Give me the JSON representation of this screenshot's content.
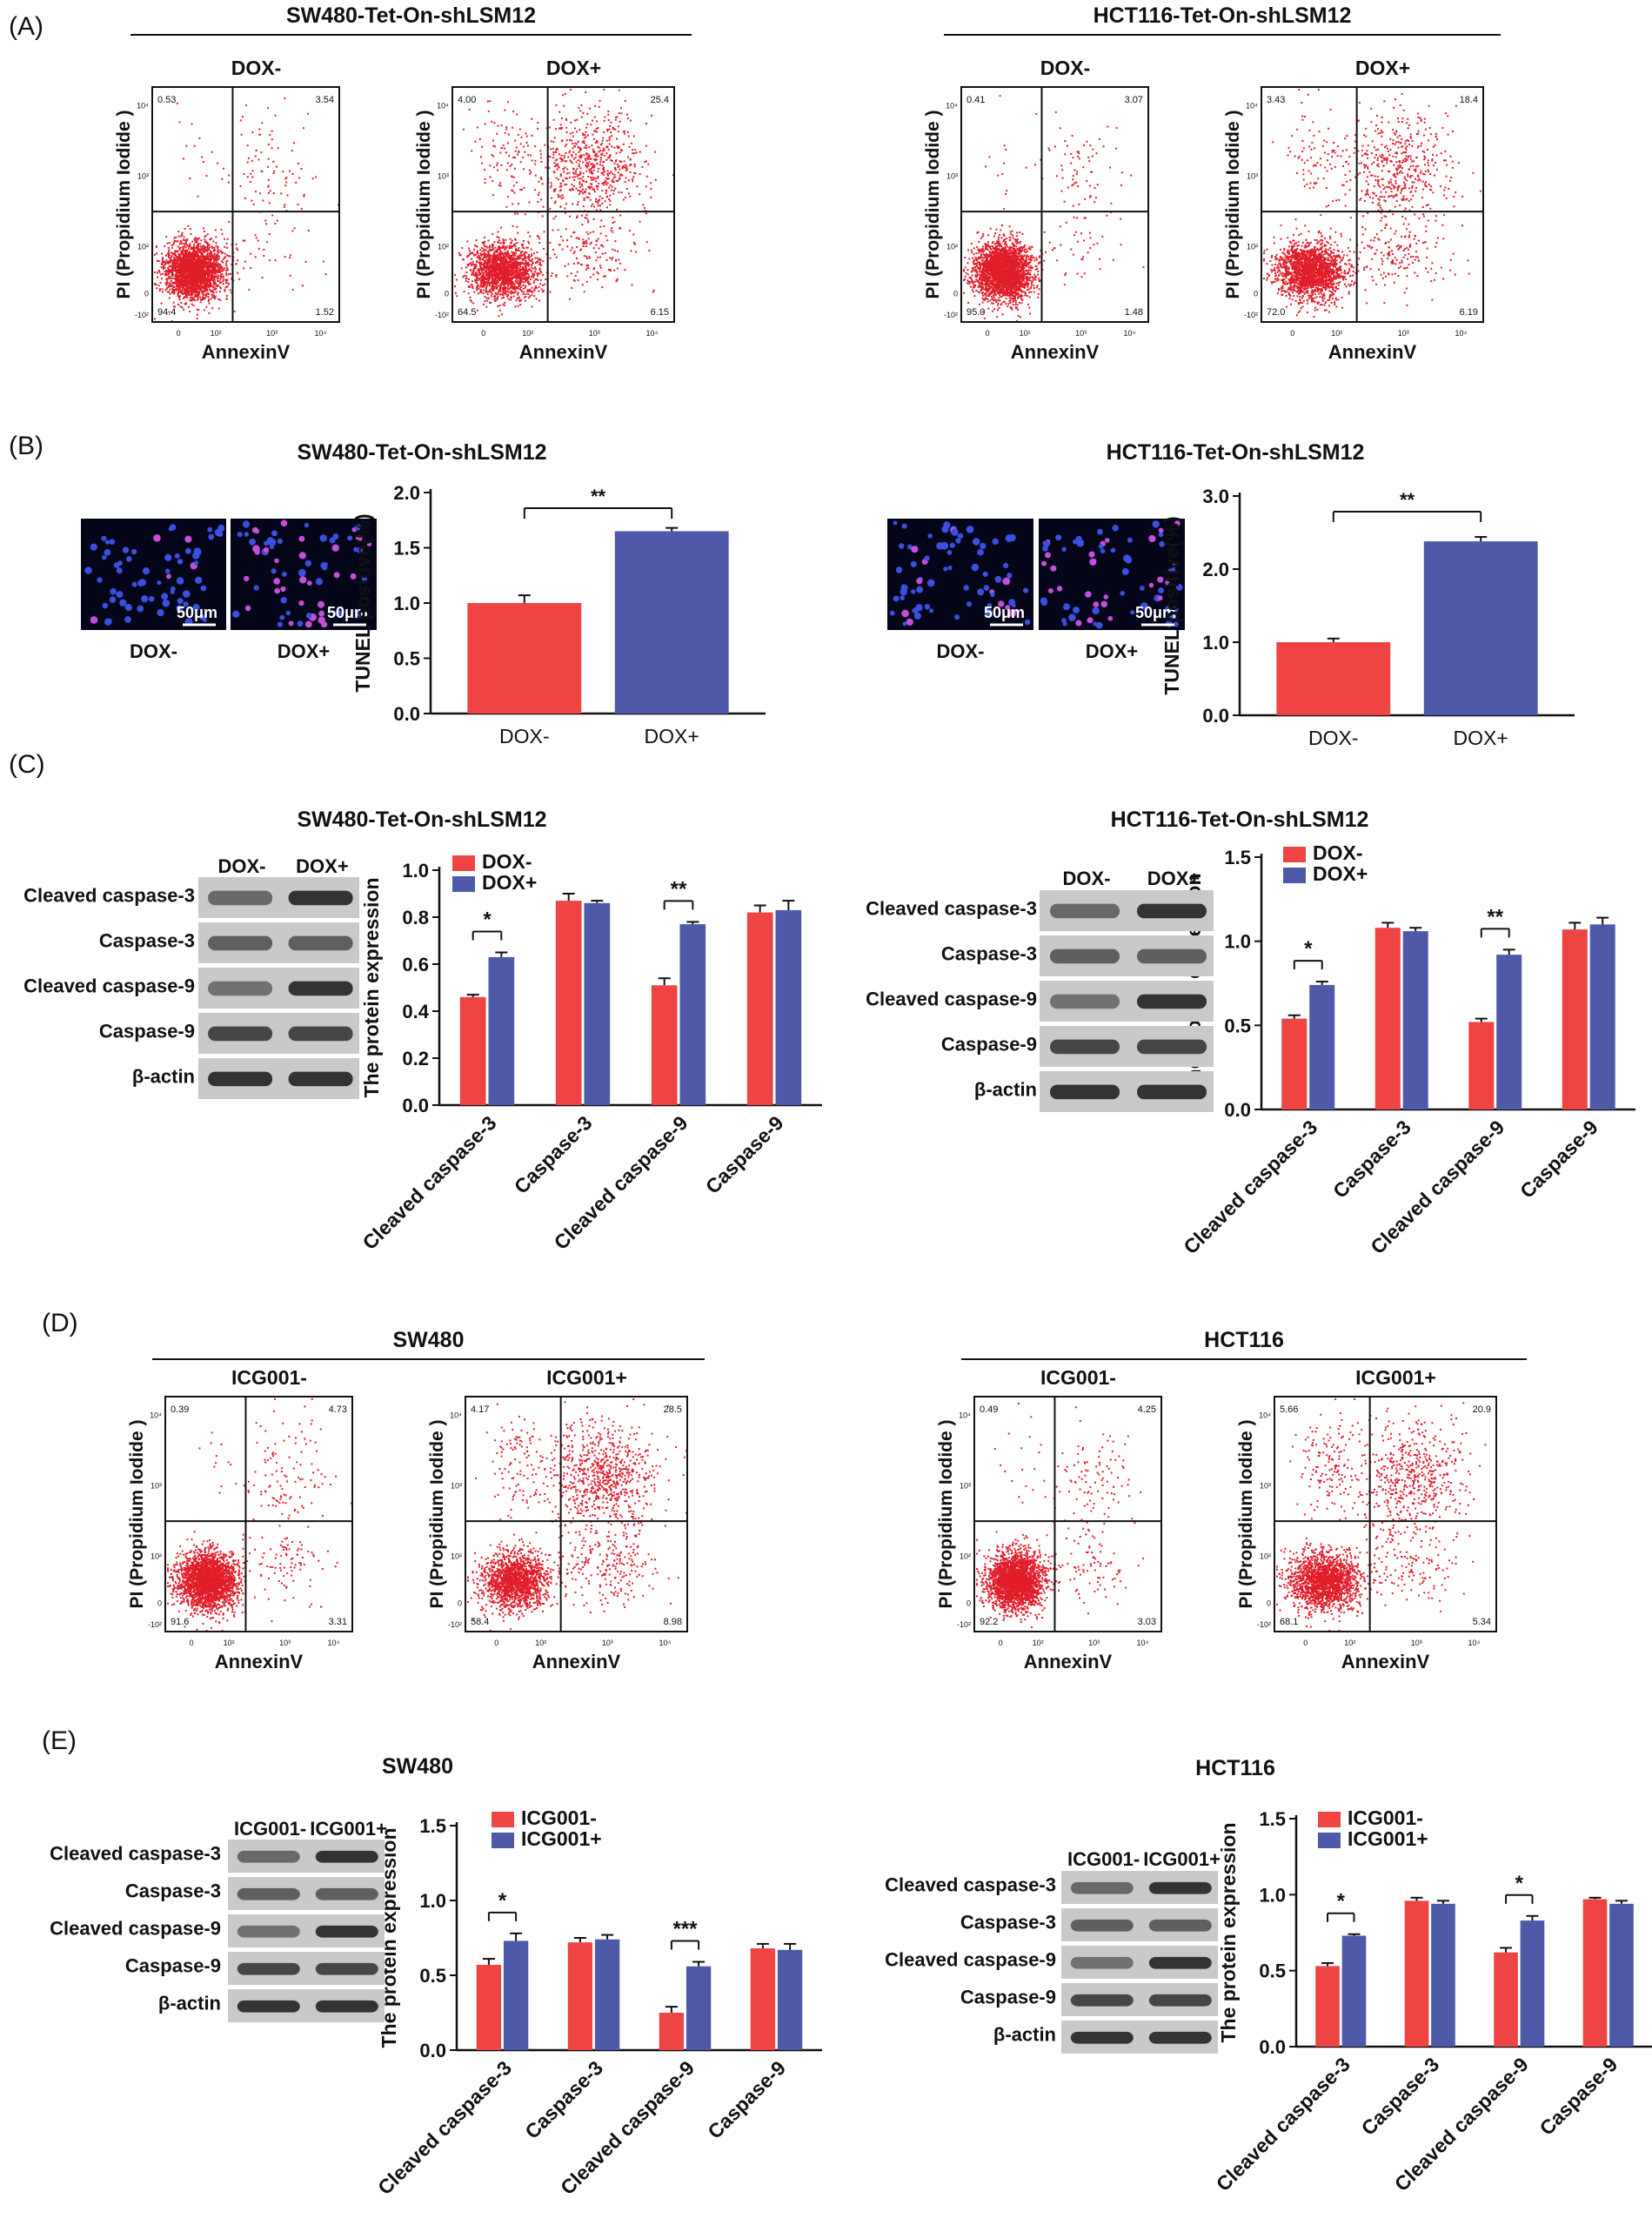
{
  "colors": {
    "red": "#ef4444",
    "blue": "#4e5aa8",
    "dot": "#e11d2a",
    "black": "#111111"
  },
  "panel_labels": [
    "(A)",
    "(B)",
    "(C)",
    "(D)",
    "(E)"
  ],
  "chart_data": [
    {
      "type": "scatter",
      "title": "SW480-Tet-On-shLSM12",
      "xlabel": "AnnexinV",
      "ylabel": "PI (Propidium Iodide )",
      "xtick_labels": [
        "0",
        "10²",
        "10³",
        "10⁴"
      ],
      "ytick_labels": [
        "-10²",
        "0",
        "10²",
        "10³",
        "10⁴"
      ],
      "plots": [
        {
          "label": "DOX-",
          "quadrants": {
            "upper_left": "0.53",
            "upper_right": "3.54",
            "lower_left": "94.4",
            "lower_right": "1.52"
          }
        },
        {
          "label": "DOX+",
          "quadrants": {
            "upper_left": "4.00",
            "upper_right": "25.4",
            "lower_left": "64.5",
            "lower_right": "6.15"
          }
        }
      ]
    },
    {
      "type": "scatter",
      "title": "HCT116-Tet-On-shLSM12",
      "xlabel": "AnnexinV",
      "ylabel": "PI (Propidium Iodide )",
      "xtick_labels": [
        "0",
        "10²",
        "10³",
        "10⁴"
      ],
      "ytick_labels": [
        "-10²",
        "0",
        "10²",
        "10³",
        "10⁴"
      ],
      "plots": [
        {
          "label": "DOX-",
          "quadrants": {
            "upper_left": "0.41",
            "upper_right": "3.07",
            "lower_left": "95.0",
            "lower_right": "1.48"
          }
        },
        {
          "label": "DOX+",
          "quadrants": {
            "upper_left": "3.43",
            "upper_right": "18.4",
            "lower_left": "72.0",
            "lower_right": "6.19"
          }
        }
      ]
    },
    {
      "type": "bar",
      "title": "SW480-Tet-On-shLSM12",
      "image_labels": [
        "DOX-",
        "DOX+"
      ],
      "scale_bar": "50μm",
      "categories": [
        "DOX-",
        "DOX+"
      ],
      "values": [
        1.0,
        1.65
      ],
      "errors": [
        0.07,
        0.03
      ],
      "ylabel": "TUNEL positive(%)",
      "ylim": [
        0,
        2.0
      ],
      "yticks": [
        "0.0",
        "0.5",
        "1.0",
        "1.5",
        "2.0"
      ],
      "significance": "**"
    },
    {
      "type": "bar",
      "title": "HCT116-Tet-On-shLSM12",
      "image_labels": [
        "DOX-",
        "DOX+"
      ],
      "scale_bar": "50μm",
      "categories": [
        "DOX-",
        "DOX+"
      ],
      "values": [
        1.0,
        2.38
      ],
      "errors": [
        0.05,
        0.06
      ],
      "ylabel": "TUNEL positive(%)",
      "ylim": [
        0,
        3.0
      ],
      "yticks": [
        "0.0",
        "1.0",
        "2.0",
        "3.0"
      ],
      "significance": "**"
    },
    {
      "type": "bar",
      "title": "SW480-Tet-On-shLSM12",
      "blot_columns": [
        "DOX-",
        "DOX+"
      ],
      "blot_rows": [
        "Cleaved caspase-3",
        "Caspase-3",
        "Cleaved caspase-9",
        "Caspase-9",
        "β-actin"
      ],
      "categories": [
        "Cleaved caspase-3",
        "Caspase-3",
        "Cleaved caspase-9",
        "Caspase-9"
      ],
      "series": [
        {
          "name": "DOX-",
          "values": [
            0.46,
            0.87,
            0.51,
            0.82
          ],
          "errors": [
            0.01,
            0.03,
            0.03,
            0.03
          ]
        },
        {
          "name": "DOX+",
          "values": [
            0.63,
            0.86,
            0.77,
            0.83
          ],
          "errors": [
            0.02,
            0.01,
            0.01,
            0.04
          ]
        }
      ],
      "ylabel": "The protein expression",
      "ylim": [
        0,
        1.0
      ],
      "yticks": [
        "0.0",
        "0.2",
        "0.4",
        "0.6",
        "0.8",
        "1.0"
      ],
      "significance": [
        {
          "category": 0,
          "mark": "*"
        },
        {
          "category": 2,
          "mark": "**"
        }
      ]
    },
    {
      "type": "bar",
      "title": "HCT116-Tet-On-shLSM12",
      "blot_columns": [
        "DOX-",
        "DOX+"
      ],
      "blot_rows": [
        "Cleaved caspase-3",
        "Caspase-3",
        "Cleaved caspase-9",
        "Caspase-9",
        "β-actin"
      ],
      "categories": [
        "Cleaved caspase-3",
        "Caspase-3",
        "Cleaved caspase-9",
        "Caspase-9"
      ],
      "series": [
        {
          "name": "DOX-",
          "values": [
            0.54,
            1.08,
            0.52,
            1.07
          ],
          "errors": [
            0.02,
            0.03,
            0.02,
            0.04
          ]
        },
        {
          "name": "DOX+",
          "values": [
            0.74,
            1.06,
            0.92,
            1.1
          ],
          "errors": [
            0.02,
            0.02,
            0.03,
            0.04
          ]
        }
      ],
      "ylabel": "The protein expression",
      "ylim": [
        0,
        1.5
      ],
      "yticks": [
        "0.0",
        "0.5",
        "1.0",
        "1.5"
      ],
      "significance": [
        {
          "category": 0,
          "mark": "*"
        },
        {
          "category": 2,
          "mark": "**"
        }
      ]
    },
    {
      "type": "scatter",
      "title": "SW480",
      "xlabel": "AnnexinV",
      "ylabel": "PI (Propidium Iodide )",
      "xtick_labels": [
        "0",
        "10²",
        "10³",
        "10⁴"
      ],
      "ytick_labels": [
        "-10²",
        "0",
        "10²",
        "10³",
        "10⁴"
      ],
      "plots": [
        {
          "label": "ICG001-",
          "quadrants": {
            "upper_left": "0.39",
            "upper_right": "4.73",
            "lower_left": "91.6",
            "lower_right": "3.31"
          }
        },
        {
          "label": "ICG001+",
          "quadrants": {
            "upper_left": "4.17",
            "upper_right": "28.5",
            "lower_left": "58.4",
            "lower_right": "8.98"
          }
        }
      ]
    },
    {
      "type": "scatter",
      "title": "HCT116",
      "xlabel": "AnnexinV",
      "ylabel": "PI (Propidium Iodide )",
      "xtick_labels": [
        "0",
        "10²",
        "10³",
        "10⁴"
      ],
      "ytick_labels": [
        "-10²",
        "0",
        "10²",
        "10³",
        "10⁴"
      ],
      "plots": [
        {
          "label": "ICG001-",
          "quadrants": {
            "upper_left": "0.49",
            "upper_right": "4.25",
            "lower_left": "92.2",
            "lower_right": "3.03"
          }
        },
        {
          "label": "ICG001+",
          "quadrants": {
            "upper_left": "5.66",
            "upper_right": "20.9",
            "lower_left": "68.1",
            "lower_right": "5.34"
          }
        }
      ]
    },
    {
      "type": "bar",
      "title": "SW480",
      "blot_columns": [
        "ICG001-",
        "ICG001+"
      ],
      "blot_rows": [
        "Cleaved caspase-3",
        "Caspase-3",
        "Cleaved caspase-9",
        "Caspase-9",
        "β-actin"
      ],
      "categories": [
        "Cleaved caspase-3",
        "Caspase-3",
        "Cleaved caspase-9",
        "Caspase-9"
      ],
      "series": [
        {
          "name": "ICG001-",
          "values": [
            0.57,
            0.72,
            0.25,
            0.68
          ],
          "errors": [
            0.04,
            0.03,
            0.04,
            0.03
          ]
        },
        {
          "name": "ICG001+",
          "values": [
            0.73,
            0.74,
            0.56,
            0.67
          ],
          "errors": [
            0.05,
            0.03,
            0.03,
            0.04
          ]
        }
      ],
      "ylabel": "The protein expression",
      "ylim": [
        0,
        1.5
      ],
      "yticks": [
        "0.0",
        "0.5",
        "1.0",
        "1.5"
      ],
      "significance": [
        {
          "category": 0,
          "mark": "*"
        },
        {
          "category": 2,
          "mark": "***"
        }
      ]
    },
    {
      "type": "bar",
      "title": "HCT116",
      "blot_columns": [
        "ICG001-",
        "ICG001+"
      ],
      "blot_rows": [
        "Cleaved caspase-3",
        "Caspase-3",
        "Cleaved caspase-9",
        "Caspase-9",
        "β-actin"
      ],
      "categories": [
        "Cleaved caspase-3",
        "Caspase-3",
        "Cleaved caspase-9",
        "Caspase-9"
      ],
      "series": [
        {
          "name": "ICG001-",
          "values": [
            0.53,
            0.96,
            0.62,
            0.97
          ],
          "errors": [
            0.02,
            0.02,
            0.03,
            0.01
          ]
        },
        {
          "name": "ICG001+",
          "values": [
            0.73,
            0.94,
            0.83,
            0.94
          ],
          "errors": [
            0.01,
            0.02,
            0.03,
            0.02
          ]
        }
      ],
      "ylabel": "The protein expression",
      "ylim": [
        0,
        1.5
      ],
      "yticks": [
        "0.0",
        "0.5",
        "1.0",
        "1.5"
      ],
      "significance": [
        {
          "category": 0,
          "mark": "*"
        },
        {
          "category": 2,
          "mark": "*"
        }
      ]
    }
  ]
}
